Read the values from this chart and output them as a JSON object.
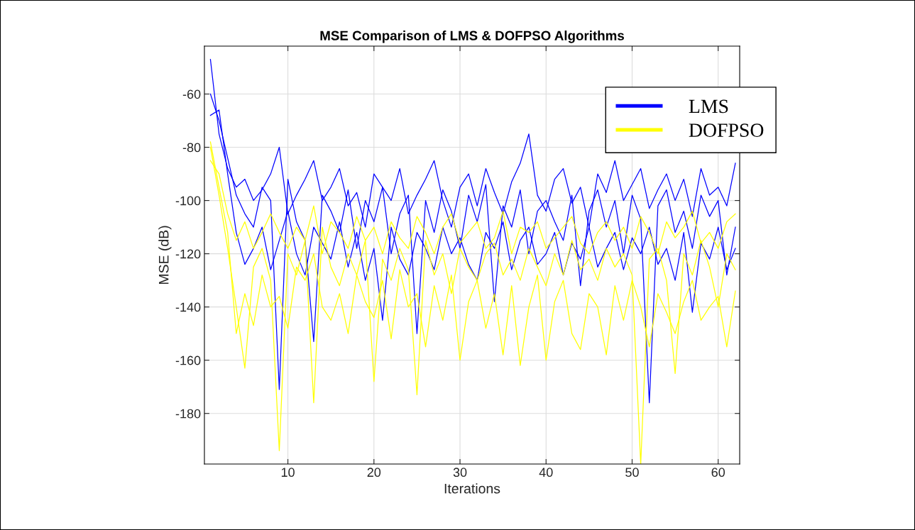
{
  "chart_data": {
    "type": "line",
    "title": "MSE Comparison of LMS & DOFPSO Algorithms",
    "xlabel": "Iterations",
    "ylabel": "MSE (dB)",
    "x": [
      1,
      2,
      3,
      4,
      5,
      6,
      7,
      8,
      9,
      10,
      11,
      12,
      13,
      14,
      15,
      16,
      17,
      18,
      19,
      20,
      21,
      22,
      23,
      24,
      25,
      26,
      27,
      28,
      29,
      30,
      31,
      32,
      33,
      34,
      35,
      36,
      37,
      38,
      39,
      40,
      41,
      42,
      43,
      44,
      45,
      46,
      47,
      48,
      49,
      50,
      51,
      52,
      53,
      54,
      55,
      56,
      57,
      58,
      59,
      60,
      61,
      62
    ],
    "xlim": [
      0.3,
      62.5
    ],
    "ylim": [
      -199,
      -42
    ],
    "xticks": [
      10,
      20,
      30,
      40,
      50,
      60
    ],
    "yticks": [
      -180,
      -160,
      -140,
      -120,
      -100,
      -80,
      -60
    ],
    "grid": true,
    "legend": "top right",
    "marker": "none",
    "line_style": "solid",
    "series": [
      {
        "name": "LMS",
        "color": "#0000ff",
        "values": [
          -47,
          -75,
          -88,
          -95,
          -92,
          -100,
          -96,
          -90,
          -80,
          -105,
          -98,
          -92,
          -85,
          -100,
          -95,
          -88,
          -102,
          -97,
          -110,
          -90,
          -95,
          -100,
          -88,
          -105,
          -98,
          -92,
          -85,
          -100,
          -110,
          -95,
          -90,
          -102,
          -88,
          -97,
          -105,
          -93,
          -86,
          -75,
          -98,
          -104,
          -92,
          -88,
          -101,
          -95,
          -110,
          -90,
          -97,
          -85,
          -100,
          -94,
          -88,
          -103,
          -96,
          -90,
          -100,
          -92,
          -106,
          -88,
          -98,
          -95,
          -102,
          -86
        ]
      },
      {
        "color": "#0000ff",
        "values": [
          -60,
          -70,
          -84,
          -98,
          -105,
          -110,
          -95,
          -100,
          -171,
          -92,
          -108,
          -115,
          -153,
          -98,
          -104,
          -112,
          -96,
          -118,
          -100,
          -108,
          -95,
          -120,
          -105,
          -98,
          -150,
          -100,
          -112,
          -96,
          -104,
          -118,
          -98,
          -108,
          -94,
          -138,
          -102,
          -110,
          -96,
          -120,
          -104,
          -100,
          -108,
          -115,
          -98,
          -132,
          -104,
          -96,
          -110,
          -100,
          -120,
          -98,
          -107,
          -176,
          -102,
          -96,
          -112,
          -104,
          -118,
          -98,
          -106,
          -100,
          -128,
          -110
        ]
      },
      {
        "color": "#0000ff",
        "values": [
          -68,
          -66,
          -90,
          -112,
          -124,
          -118,
          -110,
          -126,
          -115,
          -104,
          -120,
          -128,
          -110,
          -116,
          -122,
          -108,
          -125,
          -112,
          -130,
          -118,
          -145,
          -110,
          -122,
          -128,
          -112,
          -118,
          -126,
          -110,
          -120,
          -114,
          -124,
          -130,
          -112,
          -118,
          -108,
          -126,
          -115,
          -110,
          -124,
          -120,
          -112,
          -128,
          -116,
          -122,
          -110,
          -125,
          -118,
          -112,
          -126,
          -114,
          -120,
          -110,
          -124,
          -118,
          -130,
          -112,
          -142,
          -116,
          -122,
          -110,
          -126,
          -118
        ]
      },
      {
        "name": "DOFPSO",
        "color": "#ffff00",
        "values": [
          -80,
          -98,
          -118,
          -140,
          -163,
          -125,
          -118,
          -130,
          -194,
          -120,
          -128,
          -115,
          -176,
          -110,
          -125,
          -132,
          -120,
          -128,
          -115,
          -168,
          -122,
          -130,
          -118,
          -126,
          -173,
          -115,
          -128,
          -120,
          -135,
          -118,
          -125,
          -130,
          -120,
          -116,
          -128,
          -122,
          -130,
          -118,
          -125,
          -132,
          -120,
          -128,
          -115,
          -126,
          -122,
          -130,
          -118,
          -125,
          -120,
          -128,
          -199,
          -122,
          -118,
          -130,
          -165,
          -120,
          -128,
          -115,
          -125,
          -140,
          -120,
          -126
        ]
      },
      {
        "color": "#ffff00",
        "values": [
          -78,
          -95,
          -112,
          -150,
          -135,
          -147,
          -128,
          -140,
          -136,
          -148,
          -125,
          -130,
          -120,
          -140,
          -145,
          -135,
          -150,
          -128,
          -138,
          -144,
          -130,
          -152,
          -126,
          -140,
          -135,
          -155,
          -132,
          -145,
          -128,
          -160,
          -138,
          -130,
          -148,
          -135,
          -158,
          -132,
          -162,
          -140,
          -128,
          -160,
          -138,
          -130,
          -150,
          -156,
          -135,
          -140,
          -158,
          -132,
          -145,
          -130,
          -140,
          -155,
          -135,
          -142,
          -150,
          -138,
          -130,
          -145,
          -140,
          -136,
          -155,
          -134
        ]
      },
      {
        "color": "#ffff00",
        "values": [
          -85,
          -90,
          -105,
          -115,
          -108,
          -118,
          -112,
          -105,
          -112,
          -118,
          -110,
          -115,
          -102,
          -120,
          -108,
          -112,
          -118,
          -106,
          -115,
          -110,
          -120,
          -108,
          -114,
          -118,
          -106,
          -112,
          -120,
          -110,
          -105,
          -116,
          -112,
          -108,
          -118,
          -114,
          -104,
          -120,
          -110,
          -112,
          -108,
          -118,
          -114,
          -110,
          -106,
          -116,
          -120,
          -112,
          -108,
          -115,
          -110,
          -118,
          -106,
          -112,
          -120,
          -108,
          -114,
          -110,
          -104,
          -116,
          -112,
          -118,
          -108,
          -105
        ]
      }
    ]
  }
}
